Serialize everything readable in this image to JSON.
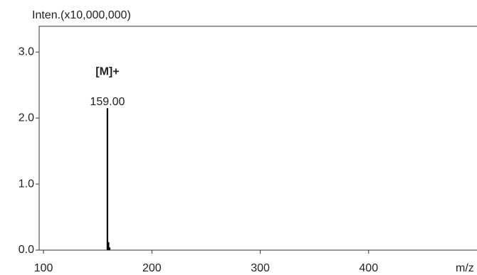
{
  "chart_data": {
    "type": "spectrum",
    "y_axis_label": "Inten.(x10,000,000)",
    "x_axis_label": "m/z",
    "x": [
      159,
      160,
      161
    ],
    "values": [
      2.15,
      0.12,
      0.04
    ],
    "color": "#000000",
    "xlim": [
      96,
      500
    ],
    "ylim": [
      0,
      3.39
    ],
    "xticks": [
      100,
      200,
      300,
      400
    ],
    "yticks": [
      {
        "value": 0,
        "label": "0.0"
      },
      {
        "value": 1,
        "label": "1.0"
      },
      {
        "value": 2,
        "label": "2.0"
      },
      {
        "value": 3,
        "label": "3.0"
      }
    ],
    "annotations": [
      {
        "text": "[M]+",
        "x": 159,
        "y": 2.7
      },
      {
        "text": "159.00",
        "x": 159,
        "y": 2.24
      }
    ]
  }
}
